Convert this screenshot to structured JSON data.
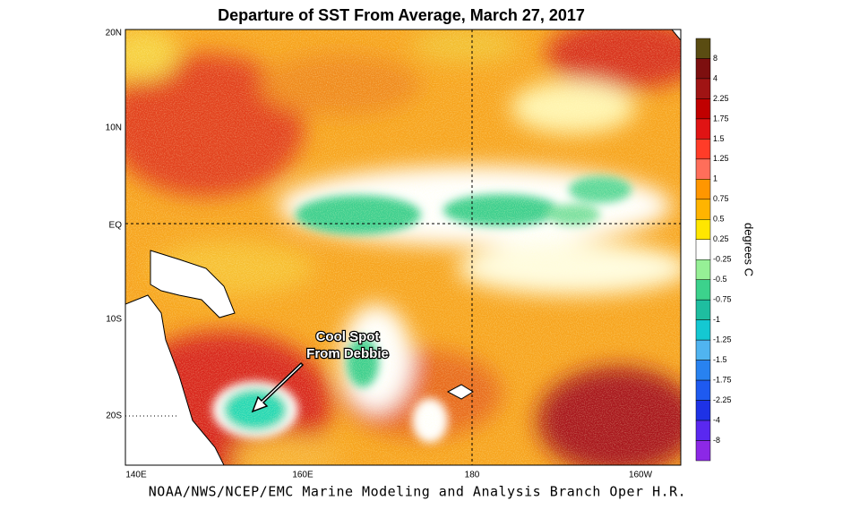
{
  "title": "Departure of SST From Average, March 27, 2017",
  "lat_labels": [
    "20N",
    "10N",
    "EQ",
    "10S",
    "20S"
  ],
  "lon_labels": [
    "140E",
    "160E",
    "180",
    "160W"
  ],
  "colorbar": {
    "title": "degrees C",
    "labels": [
      "8",
      "4",
      "2.25",
      "1.75",
      "1.5",
      "1.25",
      "1",
      "0.75",
      "0.5",
      "0.25",
      "-0.25",
      "-0.5",
      "-0.75",
      "-1",
      "-1.25",
      "-1.5",
      "-1.75",
      "-2.25",
      "-4",
      "-8"
    ],
    "colors": [
      "#5a4c12",
      "#7d0f0f",
      "#a01414",
      "#c00000",
      "#e01414",
      "#ff3c28",
      "#ff6e5a",
      "#ff9600",
      "#ffb400",
      "#ffe600",
      "#ffffff",
      "#96f096",
      "#3cd28c",
      "#1ebea0",
      "#14c8d2",
      "#50b4f0",
      "#2882f0",
      "#1e5af0",
      "#1e32e6",
      "#5a28f0",
      "#8c28e6"
    ]
  },
  "annotation": [
    "Cool Spot",
    "From Debbie"
  ],
  "footer": "NOAA/NWS/NCEP/EMC Marine Modeling and Analysis Branch Oper H.R."
}
